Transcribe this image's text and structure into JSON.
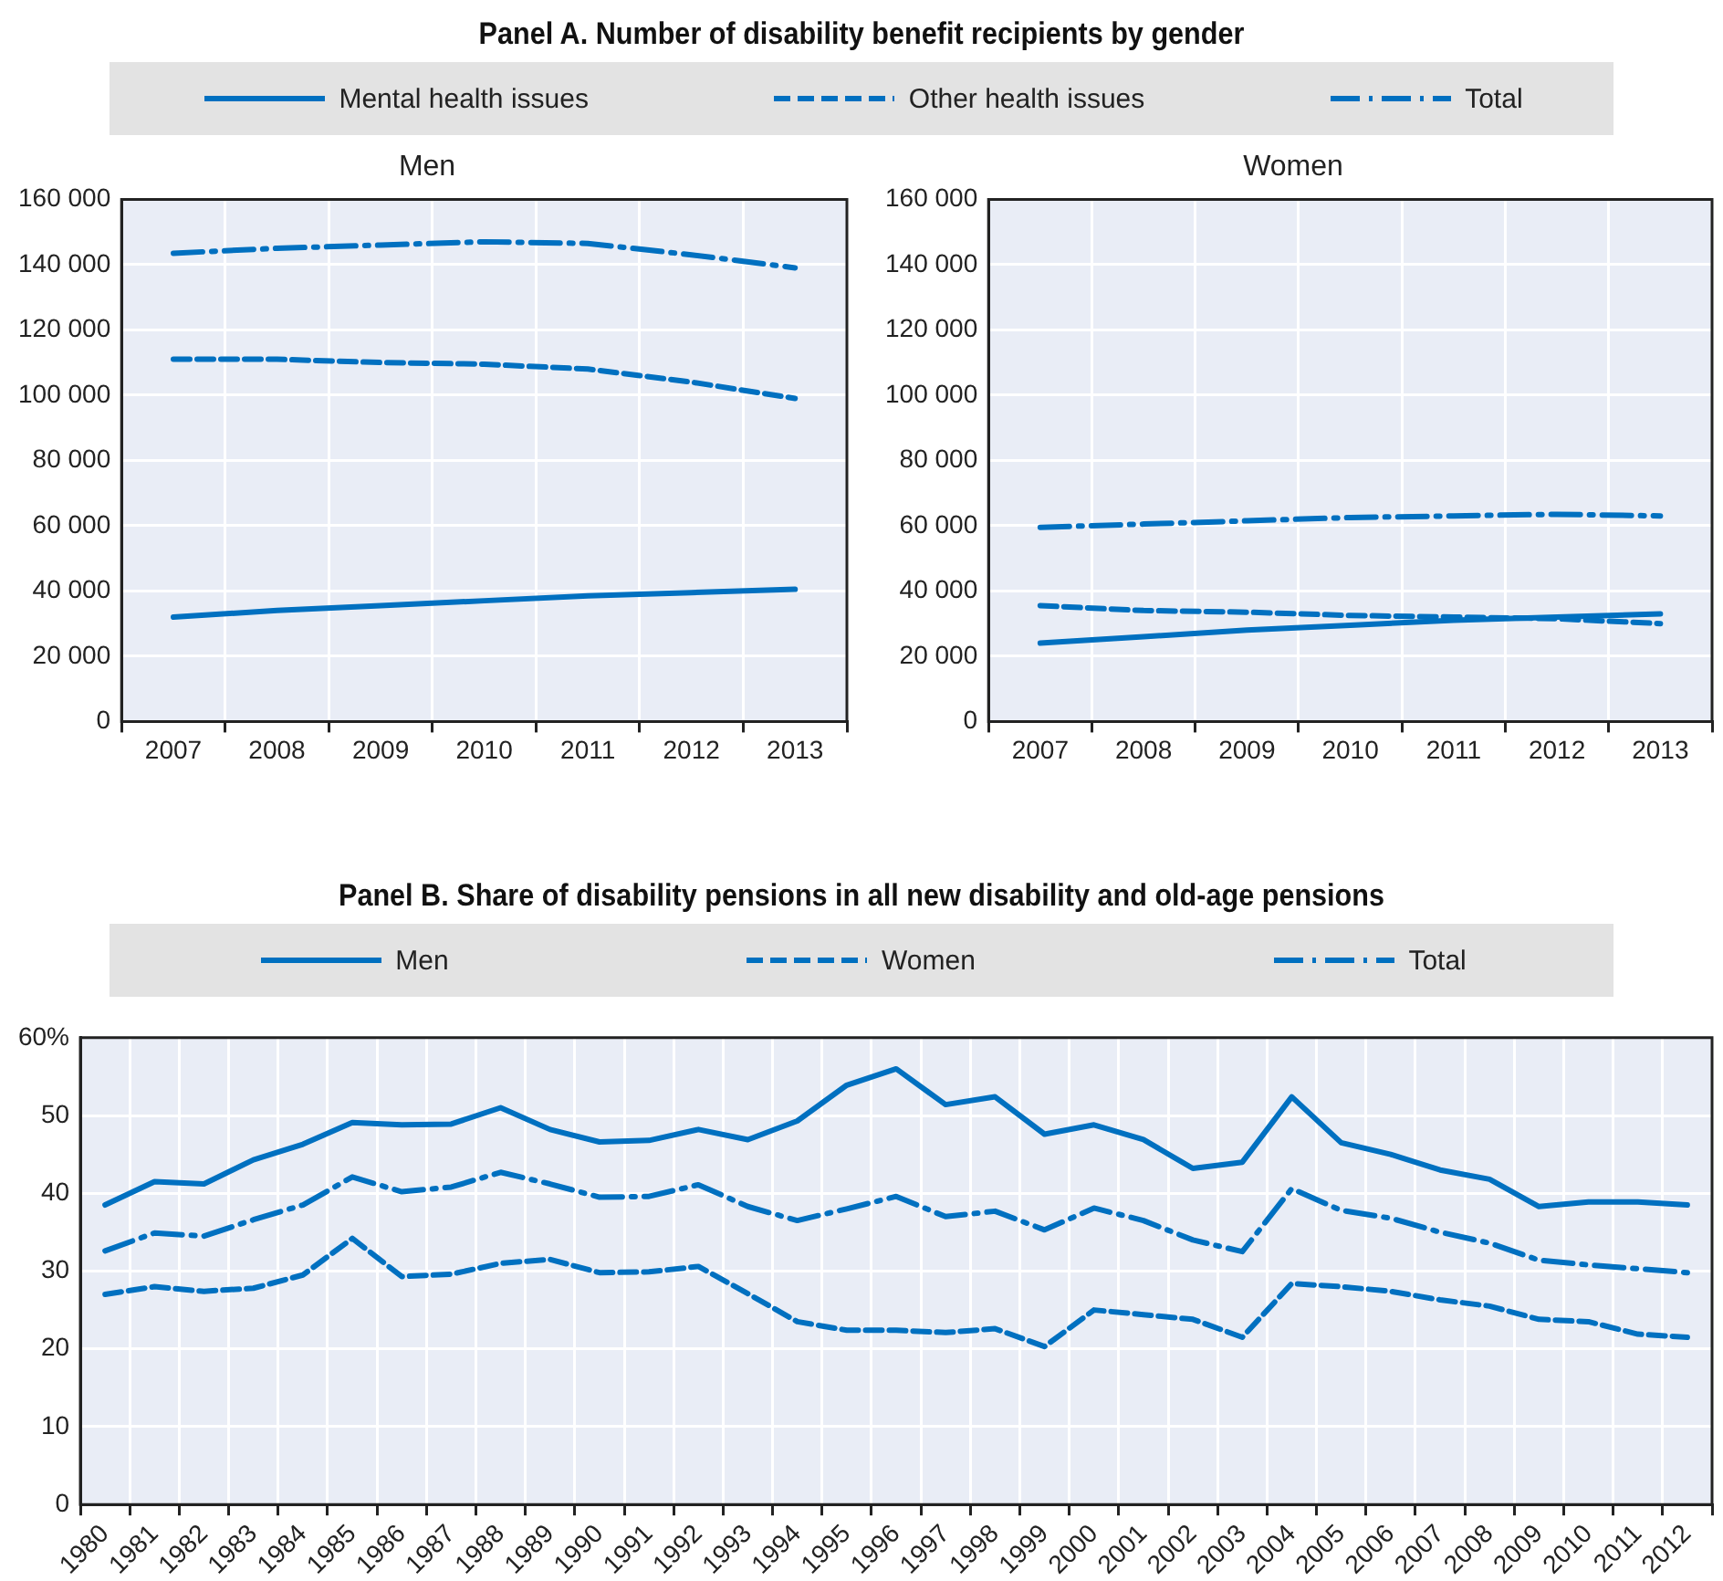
{
  "chart_data": [
    {
      "type": "line",
      "title": "Panel A. Number of disability benefit recipients by gender",
      "subtitle": "Men",
      "categories": [
        "2007",
        "2008",
        "2009",
        "2010",
        "2011",
        "2012",
        "2013"
      ],
      "series": [
        {
          "name": "Mental health issues",
          "color": "#0070c0",
          "line_style": "solid",
          "values": [
            32000,
            34000,
            35500,
            37000,
            38500,
            39500,
            40500
          ]
        },
        {
          "name": "Other health issues",
          "color": "#0070c0",
          "line_style": "dashed",
          "values": [
            111000,
            111000,
            110000,
            109500,
            108000,
            104000,
            99000
          ]
        },
        {
          "name": "Total",
          "color": "#0070c0",
          "line_style": "dashdot",
          "values": [
            143500,
            145000,
            146000,
            147000,
            146500,
            143000,
            139000
          ]
        }
      ],
      "ylim": [
        0,
        160000
      ],
      "yticks": [
        0,
        {
          "value": 20000,
          "label": "20 000"
        },
        {
          "value": 40000,
          "label": "40 000"
        },
        {
          "value": 60000,
          "label": "60 000"
        },
        {
          "value": 80000,
          "label": "80 000"
        },
        {
          "value": 100000,
          "label": "100 000"
        },
        {
          "value": 120000,
          "label": "120 000"
        },
        {
          "value": 140000,
          "label": "140 000"
        },
        {
          "value": 160000,
          "label": "160 000"
        }
      ],
      "grid": true,
      "legend": "top"
    },
    {
      "type": "line",
      "subtitle": "Women",
      "categories": [
        "2007",
        "2008",
        "2009",
        "2010",
        "2011",
        "2012",
        "2013"
      ],
      "series": [
        {
          "color": "#0070c0",
          "line_style": "solid",
          "values": [
            24000,
            26000,
            28000,
            29500,
            31000,
            32000,
            33000
          ]
        },
        {
          "color": "#0070c0",
          "line_style": "dashed",
          "values": [
            35500,
            34000,
            33500,
            32500,
            32000,
            31500,
            30000
          ]
        },
        {
          "color": "#0070c0",
          "line_style": "dashdot",
          "values": [
            59500,
            60500,
            61500,
            62500,
            63000,
            63500,
            63000
          ]
        }
      ],
      "ylim": [
        0,
        160000
      ],
      "yticks": [
        0,
        {
          "value": 20000,
          "label": "20 000"
        },
        {
          "value": 40000,
          "label": "40 000"
        },
        {
          "value": 60000,
          "label": "60 000"
        },
        {
          "value": 80000,
          "label": "80 000"
        },
        {
          "value": 100000,
          "label": "100 000"
        },
        {
          "value": 120000,
          "label": "120 000"
        },
        {
          "value": 140000,
          "label": "140 000"
        },
        {
          "value": 160000,
          "label": "160 000"
        }
      ],
      "grid": true
    },
    {
      "type": "line",
      "title": "Panel B. Share of disability pensions in all new disability and old-age pensions",
      "categories": [
        "1980",
        "1981",
        "1982",
        "1983",
        "1984",
        "1985",
        "1986",
        "1987",
        "1988",
        "1989",
        "1990",
        "1991",
        "1992",
        "1993",
        "1994",
        "1995",
        "1996",
        "1997",
        "1998",
        "1999",
        "2000",
        "2001",
        "2002",
        "2003",
        "2004",
        "2005",
        "2006",
        "2007",
        "2008",
        "2009",
        "2010",
        "2011",
        "2012"
      ],
      "series": [
        {
          "name": "Men",
          "color": "#0070c0",
          "line_style": "solid",
          "values": [
            38.5,
            41.5,
            41.2,
            44.3,
            46.3,
            49.1,
            48.8,
            48.9,
            51,
            48.2,
            46.6,
            46.8,
            48.2,
            46.9,
            49.3,
            53.9,
            56,
            51.4,
            52.4,
            47.6,
            48.8,
            46.9,
            43.2,
            44,
            52.4,
            46.5,
            45,
            43,
            41.8,
            38.3,
            38.9,
            38.9,
            38.5
          ]
        },
        {
          "name": "Women",
          "color": "#0070c0",
          "line_style": "dashed",
          "values": [
            27,
            28,
            27.4,
            27.8,
            29.5,
            34.2,
            29.3,
            29.6,
            31,
            31.5,
            29.8,
            29.9,
            30.6,
            27.1,
            23.5,
            22.4,
            22.4,
            22.1,
            22.6,
            20.3,
            25,
            24.4,
            23.8,
            21.5,
            28.4,
            28,
            27.4,
            26.3,
            25.5,
            23.8,
            23.5,
            21.9,
            21.5
          ]
        },
        {
          "name": "Total",
          "color": "#0070c0",
          "line_style": "dashdot",
          "values": [
            32.6,
            34.9,
            34.5,
            36.6,
            38.5,
            42.1,
            40.2,
            40.8,
            42.7,
            41.2,
            39.5,
            39.6,
            41.1,
            38.3,
            36.5,
            38,
            39.6,
            37,
            37.7,
            35.3,
            38.1,
            36.5,
            34,
            32.5,
            40.6,
            37.8,
            36.8,
            35,
            33.6,
            31.4,
            30.8,
            30.3,
            29.8
          ]
        }
      ],
      "ylim": [
        0,
        60
      ],
      "yticks": [
        0,
        10,
        20,
        30,
        40,
        50,
        {
          "value": 60,
          "label": "60%"
        }
      ],
      "grid": true,
      "legend": "top"
    }
  ]
}
